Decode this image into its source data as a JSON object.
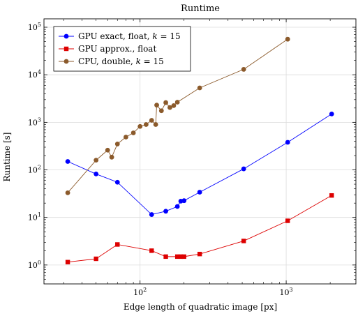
{
  "chart_data": {
    "type": "line",
    "title": "Runtime",
    "xlabel": "Edge length of quadratic image [px]",
    "ylabel": "Runtime [s]",
    "xscale": "log",
    "yscale": "log",
    "xlim": [
      22,
      3000
    ],
    "ylim": [
      0.4,
      150000
    ],
    "grid": "major",
    "legend_position": "top-left",
    "x_ticks": [
      {
        "value": 100,
        "base": "10",
        "exp": "2"
      },
      {
        "value": 1000,
        "base": "10",
        "exp": "3"
      }
    ],
    "y_ticks": [
      {
        "value": 1,
        "base": "10",
        "exp": "0"
      },
      {
        "value": 10,
        "base": "10",
        "exp": "1"
      },
      {
        "value": 100,
        "base": "10",
        "exp": "2"
      },
      {
        "value": 1000,
        "base": "10",
        "exp": "3"
      },
      {
        "value": 10000,
        "base": "10",
        "exp": "4"
      },
      {
        "value": 100000,
        "base": "10",
        "exp": "5"
      }
    ],
    "series": [
      {
        "name": "GPU exact, float, k = 15",
        "legend": {
          "before": "GPU exact, float, ",
          "var": "k",
          "after": " = 15"
        },
        "color": "#0000ff",
        "marker": "circle",
        "points": [
          [
            32,
            150
          ],
          [
            50,
            82
          ],
          [
            70,
            55
          ],
          [
            120,
            11.5
          ],
          [
            150,
            13.5
          ],
          [
            180,
            17
          ],
          [
            190,
            22
          ],
          [
            200,
            22.5
          ],
          [
            256,
            34
          ],
          [
            512,
            105
          ],
          [
            1024,
            380
          ],
          [
            2048,
            1500
          ]
        ]
      },
      {
        "name": "GPU approx., float",
        "legend": {
          "before": "GPU approx., float",
          "var": "",
          "after": ""
        },
        "color": "#dd0000",
        "marker": "square",
        "points": [
          [
            32,
            1.15
          ],
          [
            50,
            1.35
          ],
          [
            70,
            2.7
          ],
          [
            120,
            2.0
          ],
          [
            150,
            1.5
          ],
          [
            180,
            1.5
          ],
          [
            190,
            1.5
          ],
          [
            200,
            1.5
          ],
          [
            256,
            1.7
          ],
          [
            512,
            3.2
          ],
          [
            1024,
            8.5
          ],
          [
            2048,
            29
          ]
        ]
      },
      {
        "name": "CPU, double, k = 15",
        "legend": {
          "before": "CPU, double, ",
          "var": "k",
          "after": " = 15"
        },
        "color": "#8b5a2b",
        "marker": "circle",
        "points": [
          [
            32,
            33
          ],
          [
            50,
            160
          ],
          [
            60,
            260
          ],
          [
            64,
            185
          ],
          [
            70,
            350
          ],
          [
            80,
            490
          ],
          [
            90,
            600
          ],
          [
            100,
            820
          ],
          [
            110,
            900
          ],
          [
            120,
            1100
          ],
          [
            128,
            900
          ],
          [
            130,
            2300
          ],
          [
            140,
            1750
          ],
          [
            150,
            2600
          ],
          [
            160,
            2050
          ],
          [
            170,
            2250
          ],
          [
            180,
            2650
          ],
          [
            256,
            5300
          ],
          [
            512,
            13000
          ],
          [
            1024,
            56000
          ]
        ]
      }
    ]
  }
}
